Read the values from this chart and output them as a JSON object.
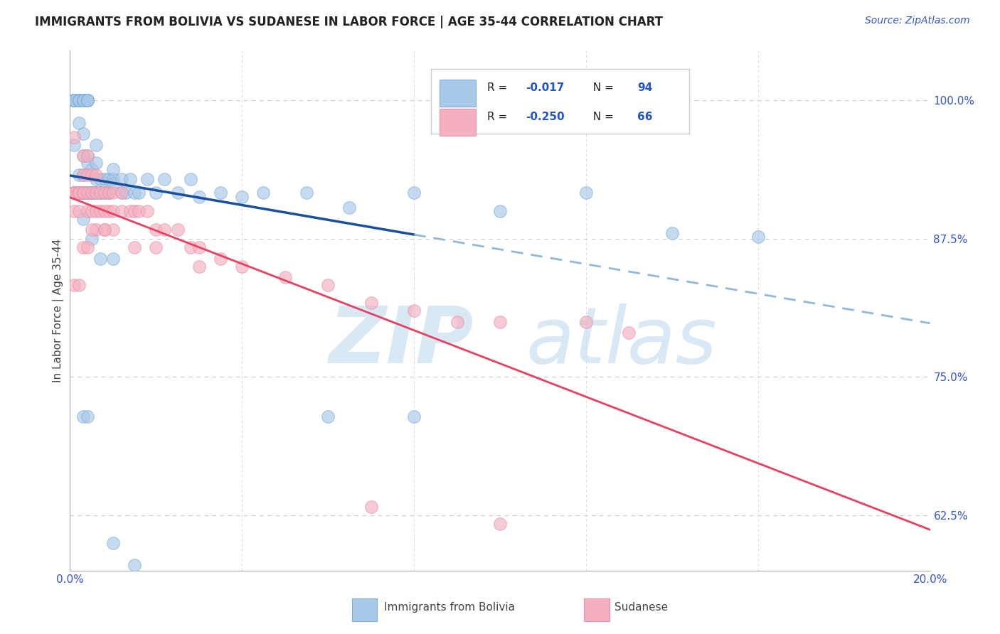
{
  "title": "IMMIGRANTS FROM BOLIVIA VS SUDANESE IN LABOR FORCE | AGE 35-44 CORRELATION CHART",
  "source": "Source: ZipAtlas.com",
  "ylabel": "In Labor Force | Age 35-44",
  "xlim": [
    0.0,
    0.2
  ],
  "ylim": [
    0.575,
    1.045
  ],
  "bolivia_color": "#a8c8e8",
  "sudanese_color": "#f4b0c0",
  "bolivia_edge": "#7bafd4",
  "sudanese_edge": "#e890a8",
  "trendline_bolivia_solid": "#1a4f9c",
  "trendline_bolivia_dashed": "#90b8d8",
  "trendline_sudanese_color": "#e84060",
  "legend_r_color": "#2255aa",
  "legend_n_color": "#2255aa",
  "ytick_vals": [
    0.625,
    0.75,
    0.875,
    1.0
  ],
  "ytick_labels": [
    "62.5%",
    "75.0%",
    "87.5%",
    "100.0%"
  ],
  "xtick_vals": [
    0.0,
    0.04,
    0.08,
    0.12,
    0.16,
    0.2
  ],
  "watermark_color": "#c8dff0"
}
